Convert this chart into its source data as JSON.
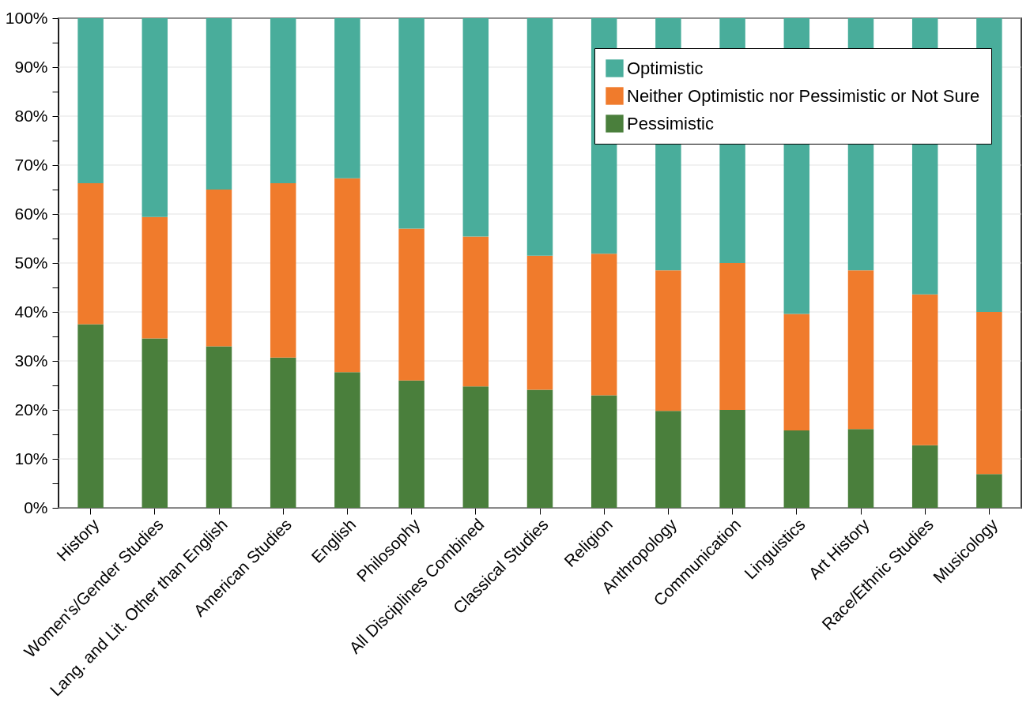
{
  "chart_data": {
    "type": "bar",
    "stacked": true,
    "categories": [
      "History",
      "Women's/Gender Studies",
      "Lang. and Lit. Other than English",
      "American Studies",
      "English",
      "Philosophy",
      "All Disciplines Combined",
      "Classical Studies",
      "Religion",
      "Anthropology",
      "Communication",
      "Linguistics",
      "Art History",
      "Race/Ethnic Studies",
      "Musicology"
    ],
    "series": [
      {
        "name": "Pessimistic",
        "color": "#4a7f3c",
        "values": [
          37.5,
          34.6,
          33.0,
          30.7,
          27.7,
          26.0,
          24.8,
          24.1,
          23.0,
          19.8,
          20.0,
          15.8,
          16.1,
          12.8,
          6.9
        ]
      },
      {
        "name": "Neither Optimistic nor Pessimistic or Not Sure",
        "color": "#f07b2c",
        "values": [
          28.8,
          24.8,
          32.0,
          35.6,
          39.6,
          31.0,
          30.6,
          27.4,
          28.9,
          28.7,
          30.0,
          23.8,
          32.4,
          30.8,
          33.1
        ]
      },
      {
        "name": "Optimistic",
        "color": "#49ad9b",
        "values": [
          33.7,
          40.6,
          35.0,
          33.7,
          32.7,
          43.0,
          44.6,
          48.5,
          48.1,
          51.5,
          50.0,
          60.4,
          51.5,
          56.4,
          60.0
        ]
      }
    ],
    "ylim": [
      0,
      100
    ],
    "yticks": [
      {
        "value": 0,
        "label": "0%"
      },
      {
        "value": 5,
        "label": null
      },
      {
        "value": 10,
        "label": "10%"
      },
      {
        "value": 15,
        "label": null
      },
      {
        "value": 20,
        "label": "20%"
      },
      {
        "value": 25,
        "label": null
      },
      {
        "value": 30,
        "label": "30%"
      },
      {
        "value": 35,
        "label": null
      },
      {
        "value": 40,
        "label": "40%"
      },
      {
        "value": 45,
        "label": null
      },
      {
        "value": 50,
        "label": "50%"
      },
      {
        "value": 55,
        "label": null
      },
      {
        "value": 60,
        "label": "60%"
      },
      {
        "value": 65,
        "label": null
      },
      {
        "value": 70,
        "label": "70%"
      },
      {
        "value": 75,
        "label": null
      },
      {
        "value": 80,
        "label": "80%"
      },
      {
        "value": 85,
        "label": null
      },
      {
        "value": 90,
        "label": "90%"
      },
      {
        "value": 95,
        "label": null
      },
      {
        "value": 100,
        "label": "100%"
      }
    ],
    "grid": "y",
    "legend": "top right"
  }
}
